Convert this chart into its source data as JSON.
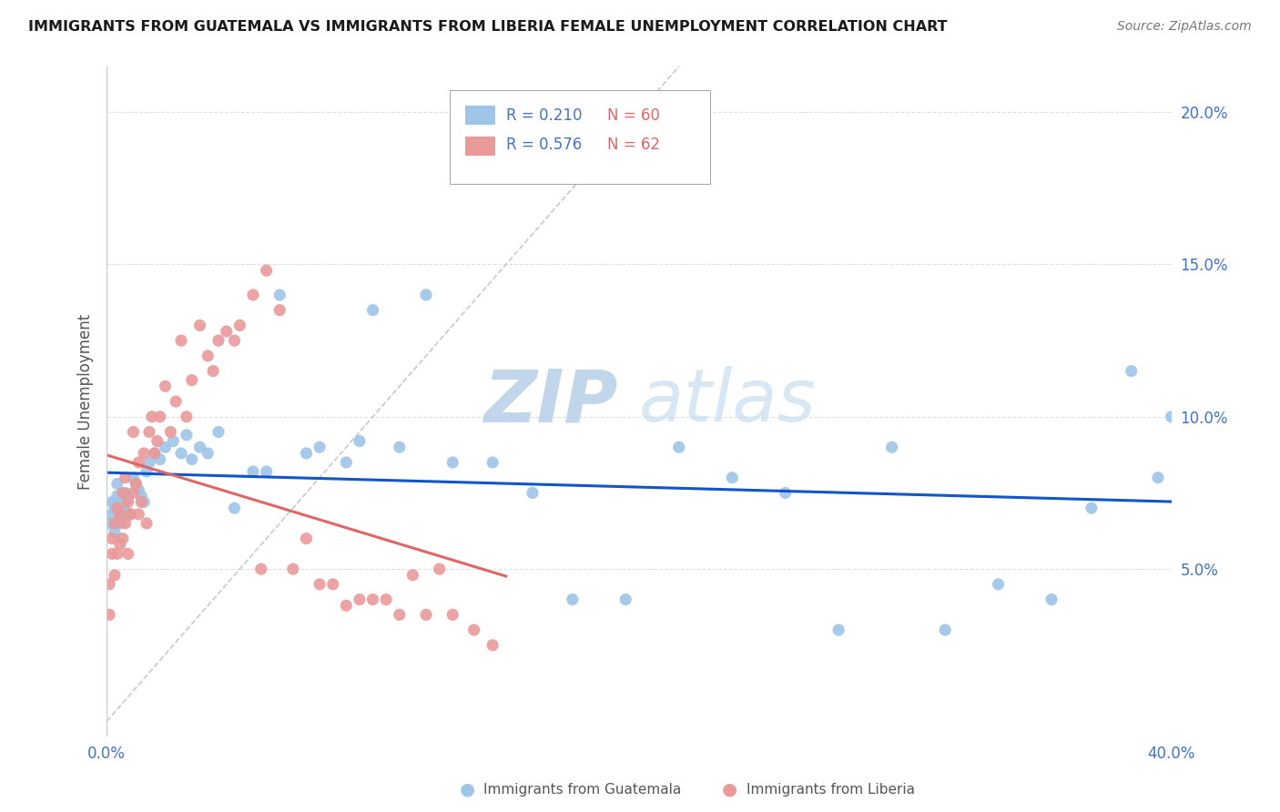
{
  "title": "IMMIGRANTS FROM GUATEMALA VS IMMIGRANTS FROM LIBERIA FEMALE UNEMPLOYMENT CORRELATION CHART",
  "source": "Source: ZipAtlas.com",
  "ylabel": "Female Unemployment",
  "y_ticks": [
    0.05,
    0.1,
    0.15,
    0.2
  ],
  "y_tick_labels": [
    "5.0%",
    "10.0%",
    "15.0%",
    "20.0%"
  ],
  "xlim": [
    0.0,
    0.4
  ],
  "ylim": [
    -0.005,
    0.215
  ],
  "legend_R1": "R = 0.210",
  "legend_N1": "N = 60",
  "legend_R2": "R = 0.576",
  "legend_N2": "N = 62",
  "series1_color": "#9fc5e8",
  "series2_color": "#ea9999",
  "line1_color": "#1155cc",
  "line2_color": "#e06666",
  "refline_color": "#bbbbbb",
  "watermark_zip": "ZIP",
  "watermark_atlas": "atlas",
  "watermark_color": "#d0e4f5",
  "guatemala_x": [
    0.001,
    0.002,
    0.002,
    0.003,
    0.003,
    0.004,
    0.004,
    0.005,
    0.005,
    0.006,
    0.006,
    0.007,
    0.007,
    0.008,
    0.009,
    0.01,
    0.011,
    0.012,
    0.013,
    0.014,
    0.015,
    0.016,
    0.018,
    0.02,
    0.022,
    0.025,
    0.028,
    0.03,
    0.032,
    0.035,
    0.038,
    0.042,
    0.048,
    0.055,
    0.06,
    0.065,
    0.075,
    0.08,
    0.09,
    0.095,
    0.1,
    0.11,
    0.12,
    0.13,
    0.145,
    0.16,
    0.175,
    0.195,
    0.215,
    0.235,
    0.255,
    0.275,
    0.295,
    0.315,
    0.335,
    0.355,
    0.37,
    0.385,
    0.395,
    0.4
  ],
  "guatemala_y": [
    0.065,
    0.068,
    0.072,
    0.07,
    0.062,
    0.074,
    0.078,
    0.065,
    0.07,
    0.068,
    0.072,
    0.075,
    0.069,
    0.073,
    0.068,
    0.08,
    0.078,
    0.076,
    0.074,
    0.072,
    0.082,
    0.085,
    0.088,
    0.086,
    0.09,
    0.092,
    0.088,
    0.094,
    0.086,
    0.09,
    0.088,
    0.095,
    0.07,
    0.082,
    0.082,
    0.14,
    0.088,
    0.09,
    0.085,
    0.092,
    0.135,
    0.09,
    0.14,
    0.085,
    0.085,
    0.075,
    0.04,
    0.04,
    0.09,
    0.08,
    0.075,
    0.03,
    0.09,
    0.03,
    0.045,
    0.04,
    0.07,
    0.115,
    0.08,
    0.1
  ],
  "liberia_x": [
    0.001,
    0.001,
    0.002,
    0.002,
    0.003,
    0.003,
    0.004,
    0.004,
    0.005,
    0.005,
    0.006,
    0.006,
    0.007,
    0.007,
    0.008,
    0.008,
    0.009,
    0.01,
    0.01,
    0.011,
    0.012,
    0.012,
    0.013,
    0.014,
    0.015,
    0.016,
    0.017,
    0.018,
    0.019,
    0.02,
    0.022,
    0.024,
    0.026,
    0.028,
    0.03,
    0.032,
    0.035,
    0.038,
    0.04,
    0.042,
    0.045,
    0.048,
    0.05,
    0.055,
    0.058,
    0.06,
    0.065,
    0.07,
    0.075,
    0.08,
    0.085,
    0.09,
    0.095,
    0.1,
    0.105,
    0.11,
    0.115,
    0.12,
    0.125,
    0.13,
    0.138,
    0.145
  ],
  "liberia_y": [
    0.035,
    0.045,
    0.06,
    0.055,
    0.048,
    0.065,
    0.055,
    0.07,
    0.058,
    0.068,
    0.06,
    0.075,
    0.065,
    0.08,
    0.055,
    0.072,
    0.068,
    0.075,
    0.095,
    0.078,
    0.068,
    0.085,
    0.072,
    0.088,
    0.065,
    0.095,
    0.1,
    0.088,
    0.092,
    0.1,
    0.11,
    0.095,
    0.105,
    0.125,
    0.1,
    0.112,
    0.13,
    0.12,
    0.115,
    0.125,
    0.128,
    0.125,
    0.13,
    0.14,
    0.05,
    0.148,
    0.135,
    0.05,
    0.06,
    0.045,
    0.045,
    0.038,
    0.04,
    0.04,
    0.04,
    0.035,
    0.048,
    0.035,
    0.05,
    0.035,
    0.03,
    0.025
  ]
}
